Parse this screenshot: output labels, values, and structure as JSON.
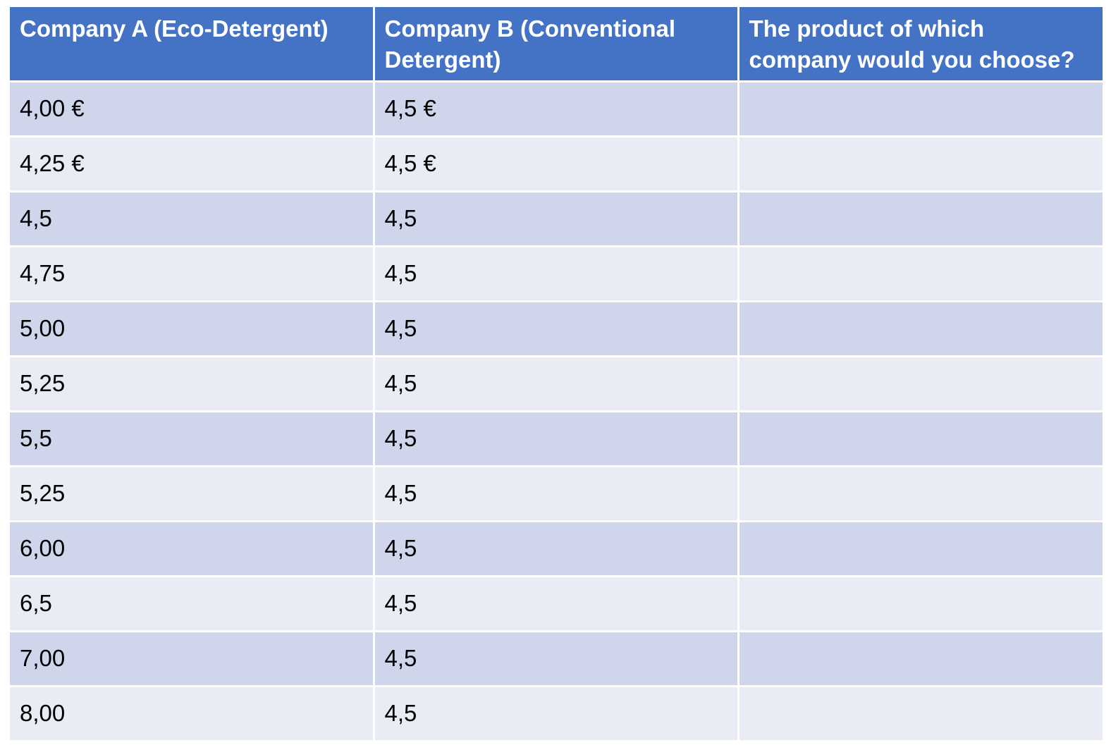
{
  "table": {
    "headers": [
      "Company A (Eco-Detergent)",
      "Company B (Conventional Detergent)",
      "The product of which company would you choose?"
    ],
    "rows": [
      [
        "4,00 €",
        "4,5 €",
        ""
      ],
      [
        "4,25 €",
        "4,5 €",
        ""
      ],
      [
        "4,5",
        "4,5",
        ""
      ],
      [
        "4,75",
        "4,5",
        ""
      ],
      [
        "5,00",
        "4,5",
        ""
      ],
      [
        "5,25",
        "4,5",
        ""
      ],
      [
        "5,5",
        "4,5",
        ""
      ],
      [
        "5,25",
        "4,5",
        ""
      ],
      [
        "6,00",
        "4,5",
        ""
      ],
      [
        "6,5",
        "4,5",
        ""
      ],
      [
        "7,00",
        "4,5",
        ""
      ],
      [
        "8,00",
        "4,5",
        ""
      ]
    ]
  },
  "colors": {
    "header_bg": "#4472c4",
    "header_text": "#ffffff",
    "row_band_dark": "#cfd5ea",
    "row_band_light": "#e9ebf5"
  }
}
